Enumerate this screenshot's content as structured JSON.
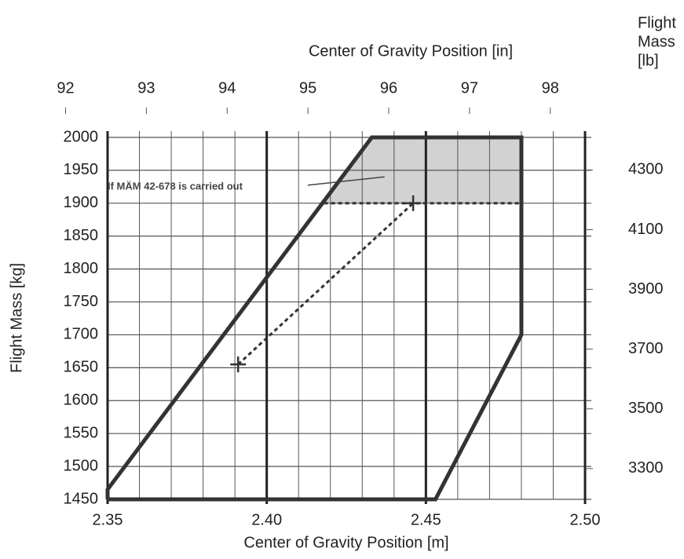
{
  "chart_data": {
    "type": "line",
    "title": "Center of Gravity Position [in]",
    "xlabel": "Center of Gravity Position [m]",
    "ylabel": "Flight Mass [kg]",
    "y2label": [
      "Flight",
      "Mass",
      "[lb]"
    ],
    "xlim": [
      2.35,
      2.5
    ],
    "xticks": [
      2.35,
      {
        "value": 2.4,
        "label": "2.40"
      },
      2.45,
      {
        "value": 2.5,
        "label": "2.50"
      }
    ],
    "xgrid": [
      2.36,
      2.37,
      2.38,
      2.39,
      2.41,
      2.42,
      2.43,
      2.44,
      2.46,
      2.47,
      2.48,
      2.49
    ],
    "x2lim": [
      92.52,
      98.43
    ],
    "x2ticks": [
      92,
      93,
      94,
      95,
      96,
      97,
      98
    ],
    "ylim": [
      1450,
      2000
    ],
    "yticks": [
      1450,
      1500,
      1550,
      1600,
      1650,
      1700,
      1750,
      1800,
      1850,
      1900,
      1950,
      2000
    ],
    "y2lim": [
      3197,
      4409
    ],
    "y2ticks": [
      3300,
      3500,
      3700,
      3900,
      4100,
      4300
    ],
    "grid": true,
    "series": [
      {
        "color": "#d2d2d2",
        "fill": true,
        "x": [
          2.4175,
          2.433,
          2.48,
          2.48
        ],
        "values": [
          1900,
          2000,
          2000,
          1900
        ]
      },
      {
        "color": "#333333",
        "width": 5,
        "x": [
          2.35,
          2.453,
          2.48,
          2.48,
          2.433,
          2.35,
          2.35
        ],
        "values": [
          1450,
          1450,
          1700,
          2000,
          2000,
          1465,
          1450
        ]
      },
      {
        "color": "#333333",
        "width": 3,
        "dash": true,
        "x": [
          2.418,
          2.48
        ],
        "values": [
          1900,
          1900
        ]
      },
      {
        "color": "#333333",
        "width": 3,
        "dash": true,
        "cross": true,
        "x": [
          2.391,
          2.446
        ],
        "values": [
          1655,
          1900
        ]
      }
    ],
    "annotation": {
      "text": "If MÄM 42-678 is carried out",
      "x": 2.35,
      "y": 1925,
      "to_x": 2.437,
      "to_y": 1940
    }
  }
}
